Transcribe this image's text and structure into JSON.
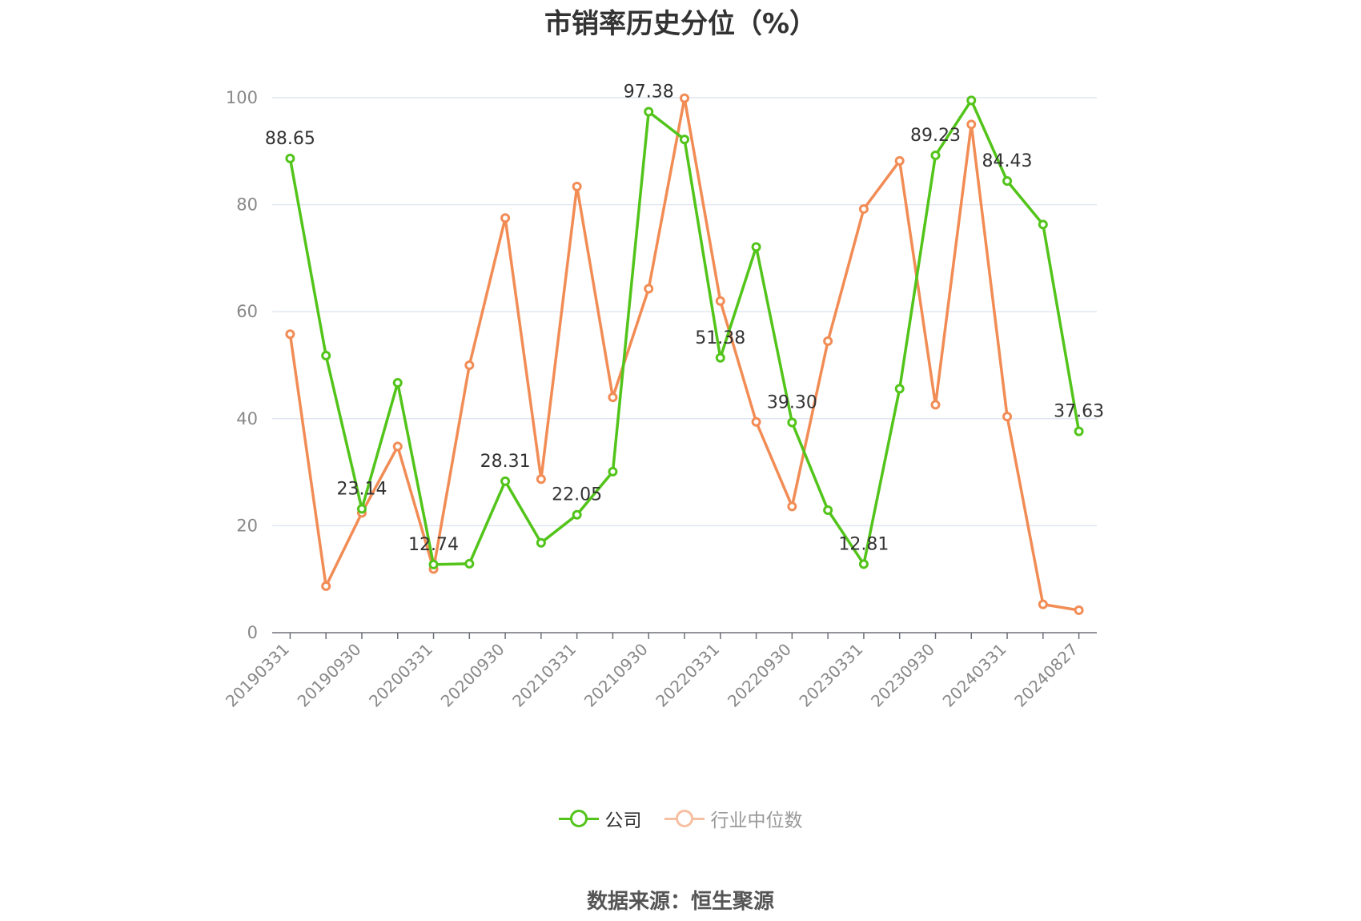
{
  "chart_data": {
    "type": "line",
    "title": "市销率历史分位（%）",
    "source": "数据来源：恒生聚源",
    "ylim": [
      0,
      100
    ],
    "yticks": [
      0,
      20,
      40,
      60,
      80,
      100
    ],
    "xtick_labels": [
      "20190331",
      "20190930",
      "20200331",
      "20200930",
      "20210331",
      "20210930",
      "20220331",
      "20220930",
      "20230331",
      "20230930",
      "20240331",
      "20240827"
    ],
    "grid": true,
    "legend_position": "bottom",
    "categories": [
      "20190331",
      "20190630",
      "20190930",
      "20191231",
      "20200331",
      "20200630",
      "20200930",
      "20201231",
      "20210331",
      "20210630",
      "20210930",
      "20211231",
      "20220331",
      "20220630",
      "20220930",
      "20221231",
      "20230331",
      "20230630",
      "20230930",
      "20231231",
      "20240331",
      "20240630",
      "20240827"
    ],
    "series": [
      {
        "name": "公司",
        "color": "#52c41a",
        "values": [
          88.65,
          51.8,
          23.14,
          46.7,
          12.74,
          12.9,
          28.31,
          16.8,
          22.05,
          30.1,
          97.38,
          92.2,
          51.38,
          72.1,
          39.3,
          22.9,
          12.81,
          45.6,
          89.23,
          99.5,
          84.43,
          76.3,
          37.63
        ],
        "labeled_indices": [
          0,
          2,
          4,
          6,
          8,
          10,
          12,
          14,
          16,
          18,
          20,
          22
        ]
      },
      {
        "name": "行业中位数",
        "color": "#f28c55",
        "values": [
          55.8,
          8.7,
          22.4,
          34.8,
          11.9,
          50.0,
          77.5,
          28.7,
          83.4,
          44.0,
          64.3,
          99.9,
          62.0,
          39.4,
          23.6,
          54.5,
          79.2,
          88.2,
          42.6,
          95.0,
          40.4,
          5.3,
          4.2
        ]
      }
    ]
  }
}
